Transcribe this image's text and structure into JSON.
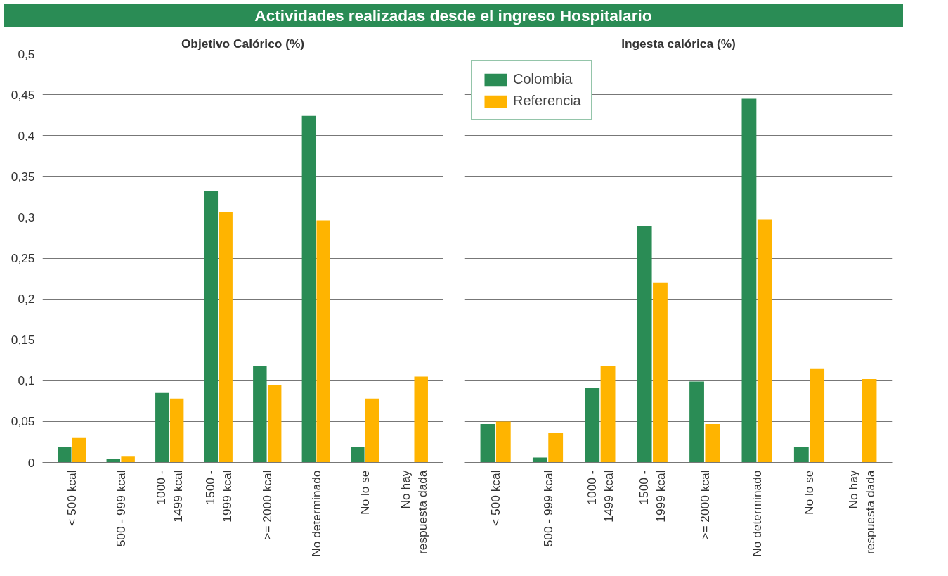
{
  "chart_data": [
    {
      "type": "bar",
      "title": "Objetivo Calórico (%)",
      "annotations": [
        "Actividades realizadas desde el ingreso Hospitalario"
      ],
      "categories": [
        "< 500 kcal",
        "500 - 999 kcal",
        "1000 - 1499 kcal",
        "1500 - 1999 kcal",
        ">= 2000 kcal",
        "No determinado",
        "No lo se",
        "No hay respuesta dada"
      ],
      "series": [
        {
          "color": "#2a8c55",
          "values": [
            0.019,
            0.004,
            0.085,
            0.332,
            0.118,
            0.424,
            0.019,
            0
          ]
        },
        {
          "color": "#ffb400",
          "values": [
            0.03,
            0.007,
            0.078,
            0.306,
            0.095,
            0.296,
            0.078,
            0.105
          ]
        }
      ],
      "ylim": [
        0,
        0.5
      ],
      "yticks": [
        {
          "value": 0,
          "label": "0"
        },
        {
          "value": 0.05,
          "label": "0,05"
        },
        {
          "value": 0.1,
          "label": "0,1"
        },
        {
          "value": 0.15,
          "label": "0,15"
        },
        {
          "value": 0.2,
          "label": "0,2"
        },
        {
          "value": 0.25,
          "label": "0,25"
        },
        {
          "value": 0.3,
          "label": "0,3"
        },
        {
          "value": 0.35,
          "label": "0,35"
        },
        {
          "value": 0.4,
          "label": "0,4"
        },
        {
          "value": 0.45,
          "label": "0,45"
        },
        {
          "value": 0.5,
          "label": "0,5"
        }
      ],
      "grid": "y",
      "legend": false
    },
    {
      "type": "bar",
      "title": "Ingesta calórica (%)",
      "categories": [
        "< 500 kcal",
        "500 - 999 kcal",
        "1000 - 1499 kcal",
        "1500 - 1999 kcal",
        ">= 2000 kcal",
        "No determinado",
        "No lo se",
        "No hay respuesta dada"
      ],
      "series": [
        {
          "name": "Colombia",
          "color": "#2a8c55",
          "values": [
            0.047,
            0.006,
            0.091,
            0.289,
            0.099,
            0.445,
            0.019,
            0
          ]
        },
        {
          "name": "Referencia",
          "color": "#ffb400",
          "values": [
            0.05,
            0.036,
            0.118,
            0.22,
            0.047,
            0.297,
            0.115,
            0.102
          ]
        }
      ],
      "ylim": [
        0,
        0.5
      ],
      "yticks": [
        0,
        0.05,
        0.1,
        0.15,
        0.2,
        0.25,
        0.3,
        0.35,
        0.4,
        0.45,
        0.5
      ],
      "tick_labels": "x",
      "grid": "y",
      "legend": "top left"
    }
  ]
}
